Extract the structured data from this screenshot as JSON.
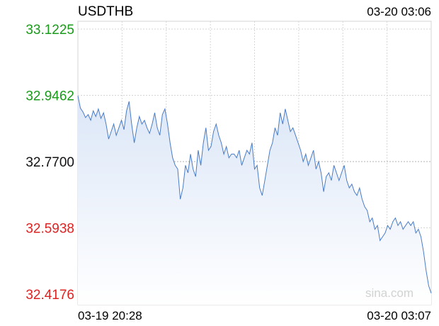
{
  "colors": {
    "up": "#1a9a1a",
    "down": "#dd2222",
    "neutral": "#111111",
    "line": "#4a7cc7",
    "fill_top": "#dbe6f7",
    "fill_bottom": "#ffffff",
    "grid": "#d6d6d6",
    "ref_line": "#b0b0b0",
    "watermark": "#d2d2d2"
  },
  "chart_data": {
    "type": "line",
    "title": "USDTHB",
    "timestamp": "03-20 03:06",
    "x_labels": {
      "start": "03-19 20:28",
      "end": "03-20 03:07"
    },
    "y_ticks": [
      {
        "label": "33.1225",
        "value": 33.1225,
        "status": "up"
      },
      {
        "label": "32.9462",
        "value": 32.9462,
        "status": "up"
      },
      {
        "label": "32.7700",
        "value": 32.77,
        "status": "neutral"
      },
      {
        "label": "32.5938",
        "value": 32.5938,
        "status": "down"
      },
      {
        "label": "32.4176",
        "value": 32.4176,
        "status": "down"
      }
    ],
    "ylim": [
      32.4176,
      33.1225
    ],
    "reference_value": 32.77,
    "grid": true,
    "watermark": "sina.com",
    "series": [
      {
        "values": [
          32.945,
          32.912,
          32.902,
          32.887,
          32.895,
          32.88,
          32.905,
          32.89,
          32.91,
          32.885,
          32.9,
          32.87,
          32.83,
          32.85,
          32.87,
          32.84,
          32.86,
          32.88,
          32.855,
          32.905,
          32.93,
          32.87,
          32.82,
          32.86,
          32.89,
          32.87,
          32.88,
          32.86,
          32.845,
          32.87,
          32.9,
          32.86,
          32.84,
          32.895,
          32.91,
          32.87,
          32.82,
          32.78,
          32.76,
          32.75,
          32.67,
          32.7,
          32.76,
          32.74,
          32.79,
          32.75,
          32.73,
          32.8,
          32.76,
          32.82,
          32.86,
          32.8,
          32.81,
          32.85,
          32.87,
          32.84,
          32.82,
          32.79,
          32.81,
          32.78,
          32.79,
          32.79,
          32.78,
          32.8,
          32.76,
          32.78,
          32.8,
          32.79,
          32.82,
          32.75,
          32.76,
          32.7,
          32.68,
          32.72,
          32.76,
          32.8,
          32.82,
          32.86,
          32.84,
          32.9,
          32.87,
          32.91,
          32.88,
          32.85,
          32.86,
          32.84,
          32.82,
          32.8,
          32.77,
          32.79,
          32.76,
          32.78,
          32.8,
          32.75,
          32.77,
          32.74,
          32.69,
          32.73,
          32.74,
          32.72,
          32.76,
          32.74,
          32.72,
          32.74,
          32.76,
          32.72,
          32.7,
          32.71,
          32.69,
          32.68,
          32.7,
          32.67,
          32.65,
          32.64,
          32.61,
          32.62,
          32.59,
          32.6,
          32.56,
          32.57,
          32.58,
          32.6,
          32.59,
          32.61,
          32.62,
          32.6,
          32.61,
          32.59,
          32.6,
          32.61,
          32.6,
          32.61,
          32.58,
          32.59,
          32.57,
          32.53,
          32.48,
          32.44,
          32.42
        ]
      }
    ]
  }
}
